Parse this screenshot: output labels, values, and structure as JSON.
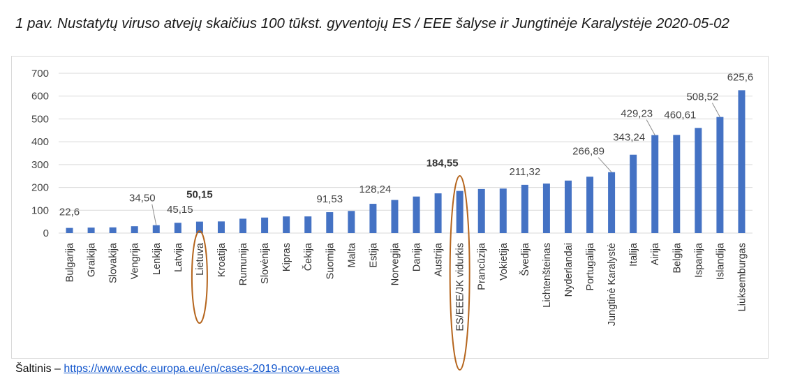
{
  "title": "1 pav. Nustatytų viruso atvejų skaičius 100 tūkst. gyventojų ES / EEE šalyse ir Jungtinėje Karalystėje 2020-05-02",
  "source": {
    "prefix": "Šaltinis – ",
    "link_text": "https://www.ecdc.europa.eu/en/cases-2019-ncov-eueea"
  },
  "colors": {
    "bar": "#4472c4",
    "highlight_ellipse": "#b5651d",
    "gridline": "#d9d9d9",
    "leader": "#8c8c8c"
  },
  "chart_data": {
    "type": "bar",
    "title": "1 pav. Nustatytų viruso atvejų skaičius 100 tūkst. gyventojų ES / EEE šalyse ir Jungtinėje Karalystėje 2020-05-02",
    "xlabel": "",
    "ylabel": "",
    "ylim": [
      0,
      700
    ],
    "yticks": [
      0,
      100,
      200,
      300,
      400,
      500,
      600,
      700
    ],
    "grid": true,
    "categories": [
      "Bulgarija",
      "Graikija",
      "Slovakija",
      "Vengrija",
      "Lenkija",
      "Latvija",
      "Lietuva",
      "Kroatija",
      "Rumunija",
      "Slovėnija",
      "Kipras",
      "Čekija",
      "Suomija",
      "Malta",
      "Estija",
      "Norvegija",
      "Danija",
      "Austrija",
      "ES/EEE/JK vidurkis",
      "Prancūzija",
      "Vokietija",
      "Švedija",
      "Lichtenšteinas",
      "Nyderlandai",
      "Portugalija",
      "Jungtinė Karalystė",
      "Italija",
      "Airija",
      "Belgija",
      "Ispanija",
      "Islandija",
      "Liuksemburgas"
    ],
    "values": [
      22.6,
      24,
      25,
      30,
      34.5,
      45.15,
      50.15,
      51,
      63,
      68,
      73,
      73,
      91.53,
      97,
      128.24,
      145,
      160,
      174,
      184.55,
      193,
      195,
      211.32,
      217,
      230,
      247,
      266.89,
      343.24,
      429.23,
      430,
      460.61,
      508.52,
      625.6
    ],
    "data_labels": [
      {
        "category": "Bulgarija",
        "text": "22,6",
        "bold": false
      },
      {
        "category": "Lenkija",
        "text": "34,50",
        "bold": false
      },
      {
        "category": "Latvija",
        "text": "45,15",
        "bold": false
      },
      {
        "category": "Lietuva",
        "text": "50,15",
        "bold": true
      },
      {
        "category": "Suomija",
        "text": "91,53",
        "bold": false
      },
      {
        "category": "Estija",
        "text": "128,24",
        "bold": false
      },
      {
        "category": "ES/EEE/JK vidurkis",
        "text": "184,55",
        "bold": true
      },
      {
        "category": "Švedija",
        "text": "211,32",
        "bold": false
      },
      {
        "category": "Jungtinė Karalystė",
        "text": "266,89",
        "bold": false
      },
      {
        "category": "Italija",
        "text": "343,24",
        "bold": false
      },
      {
        "category": "Airija",
        "text": "429,23",
        "bold": false
      },
      {
        "category": "Ispanija",
        "text": "460,61",
        "bold": false
      },
      {
        "category": "Islandija",
        "text": "508,52",
        "bold": false
      },
      {
        "category": "Liuksemburgas",
        "text": "625,6",
        "bold": false
      }
    ],
    "highlighted": [
      "Lietuva",
      "ES/EEE/JK vidurkis"
    ]
  }
}
